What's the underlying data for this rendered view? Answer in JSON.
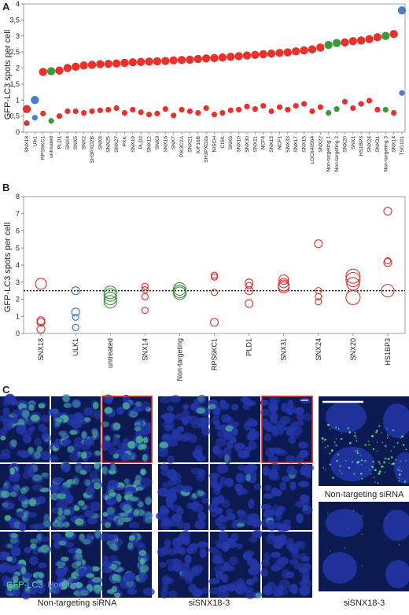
{
  "panels": {
    "A": {
      "letter": "A"
    },
    "B": {
      "letter": "B"
    },
    "C": {
      "letter": "C",
      "legend_gfp": "GFP-LC3",
      "legend_hoechst": "Hoechst",
      "caption_left": "Non-targeting siRNA",
      "caption_mid": "siSNX18-3",
      "caption_zoom_top": "Non-targeting siRNA",
      "caption_zoom_bottom": "siSNX18-3"
    }
  },
  "colors": {
    "red": "#e8302c",
    "green": "#3a9a3a",
    "blue": "#4a7ec8",
    "red_open": "#d9322e",
    "green_open": "#3f8f3f",
    "blue_open": "#3b6fb8",
    "micro_bg": "#0d1a52",
    "nucleus": "#2336a8",
    "gfp": "#5ef08a"
  },
  "chart_data": [
    {
      "type": "scatter",
      "panel": "A",
      "ylabel": "GFP-LC3 spots per cell",
      "ylim": [
        0,
        4
      ],
      "yticks": [
        0,
        0.5,
        1,
        1.5,
        2,
        2.5,
        3,
        3.5,
        4
      ],
      "ytick_labels": [
        "0",
        "0,5",
        "1",
        "1,5",
        "2",
        "2,5",
        "3",
        "3,5",
        "4"
      ],
      "categories": [
        "SNX18",
        "Ulk1",
        "RPS6KC1",
        "untreated",
        "PLD1",
        "SNX4",
        "SNX5",
        "SNX2",
        "SH3PXD2B",
        "SNX8",
        "SNX25",
        "SNX27",
        "PXK",
        "SNX19",
        "PLD2",
        "SNX12",
        "SNX9",
        "SNX16",
        "SNX7",
        "PIK3C2A",
        "SNX21",
        "KIF16B",
        "SH3PXD2a",
        "NISCH",
        "CISK",
        "SNX6",
        "SNX10",
        "SNX30",
        "SNX11",
        "NCF4",
        "SNX13",
        "NCF1",
        "SNX33",
        "SNX17",
        "SNX15",
        "LOC640564",
        "SNX22",
        "Non-targeting 1",
        "Non-targeting 2",
        "SNX20",
        "SNX1",
        "HS1BP3",
        "SNX24",
        "SNX31",
        "Non-targeting 3",
        "SNX14",
        "TSG101"
      ],
      "series": [
        {
          "values": [
            0.72,
            1.0,
            1.88,
            1.9,
            1.92,
            2.0,
            2.04,
            2.08,
            2.1,
            2.12,
            2.13,
            2.14,
            2.16,
            2.18,
            2.19,
            2.2,
            2.21,
            2.22,
            2.24,
            2.25,
            2.26,
            2.28,
            2.3,
            2.31,
            2.33,
            2.35,
            2.37,
            2.39,
            2.41,
            2.43,
            2.45,
            2.47,
            2.49,
            2.52,
            2.55,
            2.58,
            2.64,
            2.72,
            2.78,
            2.8,
            2.84,
            2.86,
            2.9,
            2.96,
            3.0,
            3.06,
            3.8
          ],
          "colors": [
            "red",
            "blue",
            "red",
            "green",
            "red",
            "red",
            "red",
            "red",
            "red",
            "red",
            "red",
            "red",
            "red",
            "red",
            "red",
            "red",
            "red",
            "red",
            "red",
            "red",
            "red",
            "red",
            "red",
            "red",
            "red",
            "red",
            "red",
            "red",
            "red",
            "red",
            "red",
            "red",
            "red",
            "red",
            "red",
            "red",
            "red",
            "green",
            "green",
            "red",
            "red",
            "red",
            "red",
            "red",
            "green",
            "red",
            "blue"
          ]
        },
        {
          "values": [
            0.28,
            0.45,
            0.58,
            0.35,
            0.5,
            0.65,
            0.65,
            0.6,
            0.65,
            0.68,
            0.7,
            0.75,
            0.6,
            0.7,
            0.62,
            0.55,
            0.58,
            0.72,
            0.52,
            0.7,
            0.65,
            0.6,
            0.75,
            0.55,
            0.6,
            0.68,
            0.7,
            0.8,
            0.72,
            0.82,
            0.65,
            0.78,
            0.7,
            0.82,
            0.88,
            0.65,
            0.78,
            0.6,
            0.72,
            0.95,
            0.75,
            0.88,
            0.98,
            0.7,
            0.7,
            0.6,
            1.22
          ],
          "colors": [
            "red",
            "blue",
            "red",
            "green",
            "red",
            "red",
            "red",
            "red",
            "red",
            "red",
            "red",
            "red",
            "red",
            "red",
            "red",
            "red",
            "red",
            "red",
            "red",
            "red",
            "red",
            "red",
            "red",
            "red",
            "red",
            "red",
            "red",
            "red",
            "red",
            "red",
            "red",
            "red",
            "red",
            "red",
            "red",
            "red",
            "red",
            "green",
            "green",
            "red",
            "red",
            "red",
            "red",
            "red",
            "green",
            "red",
            "blue"
          ]
        }
      ]
    },
    {
      "type": "scatter",
      "panel": "B",
      "ylabel": "GFP-LC3 spots per cell",
      "ylim": [
        0,
        8
      ],
      "yticks": [
        0,
        1,
        2,
        3,
        4,
        5,
        6,
        7,
        8
      ],
      "ytick_labels": [
        "0",
        "1",
        "2",
        "3",
        "4",
        "5",
        "6",
        "7",
        "8"
      ],
      "reference_line": 2.5,
      "categories": [
        "SNX18",
        "ULK1",
        "untreated",
        "SNX14",
        "Non-targeting",
        "RPS6KC1",
        "PLD1",
        "SNX31",
        "SNX24",
        "SNX20",
        "HS1BP3"
      ],
      "category_colors": [
        "red",
        "blue",
        "green",
        "red",
        "green",
        "red",
        "red",
        "red",
        "red",
        "red",
        "red"
      ],
      "points": [
        {
          "cat": 0,
          "y": 2.9,
          "r": 7
        },
        {
          "cat": 0,
          "y": 0.75,
          "r": 5
        },
        {
          "cat": 0,
          "y": 0.65,
          "r": 5
        },
        {
          "cat": 0,
          "y": 0.25,
          "r": 5
        },
        {
          "cat": 1,
          "y": 2.5,
          "r": 5
        },
        {
          "cat": 1,
          "y": 1.25,
          "r": 5
        },
        {
          "cat": 1,
          "y": 0.95,
          "r": 4
        },
        {
          "cat": 1,
          "y": 0.35,
          "r": 4
        },
        {
          "cat": 2,
          "y": 2.4,
          "r": 8
        },
        {
          "cat": 2,
          "y": 2.25,
          "r": 8
        },
        {
          "cat": 2,
          "y": 2.05,
          "r": 8
        },
        {
          "cat": 2,
          "y": 1.85,
          "r": 8
        },
        {
          "cat": 3,
          "y": 2.75,
          "r": 4
        },
        {
          "cat": 3,
          "y": 2.55,
          "r": 4
        },
        {
          "cat": 3,
          "y": 2.15,
          "r": 4
        },
        {
          "cat": 3,
          "y": 1.35,
          "r": 4
        },
        {
          "cat": 4,
          "y": 2.6,
          "r": 8
        },
        {
          "cat": 4,
          "y": 2.45,
          "r": 8
        },
        {
          "cat": 4,
          "y": 2.35,
          "r": 8
        },
        {
          "cat": 5,
          "y": 3.4,
          "r": 4
        },
        {
          "cat": 5,
          "y": 3.3,
          "r": 4
        },
        {
          "cat": 5,
          "y": 2.4,
          "r": 4
        },
        {
          "cat": 5,
          "y": 0.65,
          "r": 5
        },
        {
          "cat": 6,
          "y": 2.95,
          "r": 5
        },
        {
          "cat": 6,
          "y": 2.8,
          "r": 4
        },
        {
          "cat": 6,
          "y": 2.5,
          "r": 5
        },
        {
          "cat": 6,
          "y": 1.75,
          "r": 5
        },
        {
          "cat": 7,
          "y": 3.15,
          "r": 6
        },
        {
          "cat": 7,
          "y": 2.95,
          "r": 6
        },
        {
          "cat": 7,
          "y": 2.8,
          "r": 7
        },
        {
          "cat": 7,
          "y": 2.7,
          "r": 7
        },
        {
          "cat": 8,
          "y": 5.25,
          "r": 5
        },
        {
          "cat": 8,
          "y": 2.5,
          "r": 4
        },
        {
          "cat": 8,
          "y": 2.15,
          "r": 4
        },
        {
          "cat": 8,
          "y": 1.85,
          "r": 4
        },
        {
          "cat": 9,
          "y": 3.35,
          "r": 9
        },
        {
          "cat": 9,
          "y": 3.15,
          "r": 9
        },
        {
          "cat": 9,
          "y": 2.9,
          "r": 8
        },
        {
          "cat": 9,
          "y": 2.1,
          "r": 9
        },
        {
          "cat": 10,
          "y": 7.15,
          "r": 5
        },
        {
          "cat": 10,
          "y": 4.25,
          "r": 4
        },
        {
          "cat": 10,
          "y": 4.15,
          "r": 5
        },
        {
          "cat": 10,
          "y": 2.5,
          "r": 8
        }
      ]
    }
  ]
}
